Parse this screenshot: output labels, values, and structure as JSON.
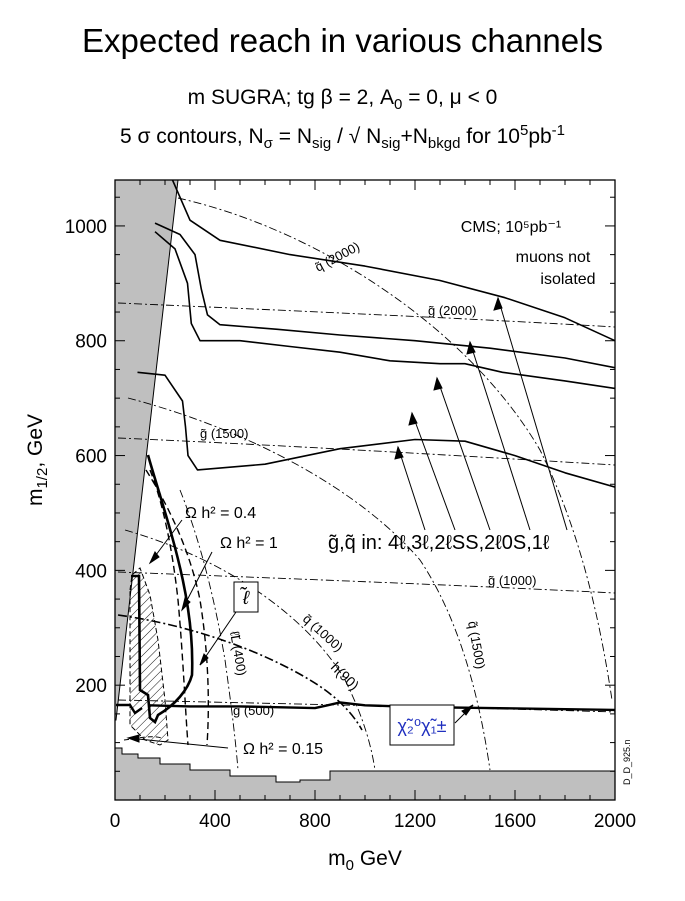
{
  "title": "Expected reach in various channels",
  "subtitle_line1": {
    "pre": "m SUGRA; tg β = 2, A",
    "sub": "0",
    "post": " = 0, μ < 0"
  },
  "subtitle_line2": {
    "pre": "5 σ contours, N",
    "sub1": "σ",
    "mid1": " = N",
    "sub2": "sig",
    "mid2": " / √ N",
    "sub3": "sig",
    "mid3": "+N",
    "sub4": "bkgd",
    "mid4": "  for 10",
    "sup": "5",
    "post": "pb",
    "sup2": "-1"
  },
  "chart_data": {
    "type": "line",
    "xlabel": "m₀ GeV",
    "ylabel": "m1/2, GeV",
    "xlim": [
      0,
      2000
    ],
    "ylim": [
      0,
      1080
    ],
    "x_ticks": [
      "0",
      "400",
      "800",
      "1200",
      "1600",
      "2000"
    ],
    "y_ticks": [
      "200",
      "400",
      "600",
      "800",
      "1000"
    ],
    "grid": false,
    "annotations": {
      "cms": "CMS;  10⁵pb⁻¹",
      "muons1": "muons not",
      "muons2": "isolated",
      "gq_channels": "g̃,q̃  in: 4ℓ,3ℓ,2ℓSS,2ℓ0S,1ℓ",
      "omega_04": "Ω h² = 0.4",
      "omega_1": "Ω h² = 1",
      "omega_015": "Ω h² = 0.15",
      "slepton_box": "ℓ̃",
      "chi_box": "χ̃₂⁰χ̃₁±",
      "q2000": "q̃ (2000)",
      "g2000": "g̃ (2000)",
      "g1500": "g̃ (1500)",
      "g1000": "g̃ (1000)",
      "q1000": "q̃ (1000)",
      "q1500": "q̃ (1500)",
      "g500": "g̃ (500)",
      "h90": "h(90)",
      "lL400": "ℓ̃L (400)",
      "side_id": "D_D_925.n"
    },
    "series": [
      {
        "style": "solid",
        "points": [
          [
            230,
            1080
          ],
          [
            300,
            1010
          ],
          [
            420,
            975
          ],
          [
            700,
            950
          ],
          [
            1000,
            930
          ],
          [
            1300,
            905
          ],
          [
            1560,
            875
          ],
          [
            1800,
            840
          ],
          [
            2000,
            800
          ]
        ]
      },
      {
        "style": "solid",
        "points": [
          [
            160,
            1005
          ],
          [
            260,
            985
          ],
          [
            320,
            950
          ],
          [
            345,
            890
          ],
          [
            370,
            845
          ],
          [
            420,
            828
          ],
          [
            650,
            820
          ],
          [
            900,
            810
          ],
          [
            1200,
            800
          ],
          [
            1500,
            787
          ],
          [
            1800,
            770
          ],
          [
            2000,
            753
          ]
        ]
      },
      {
        "style": "solid",
        "points": [
          [
            160,
            990
          ],
          [
            240,
            960
          ],
          [
            290,
            900
          ],
          [
            305,
            830
          ],
          [
            340,
            800
          ],
          [
            500,
            800
          ],
          [
            700,
            790
          ],
          [
            900,
            780
          ],
          [
            1100,
            765
          ],
          [
            1300,
            760
          ],
          [
            1400,
            760
          ],
          [
            1550,
            745
          ],
          [
            1800,
            730
          ],
          [
            2000,
            717
          ]
        ]
      },
      {
        "style": "solid",
        "points": [
          [
            90,
            745
          ],
          [
            200,
            740
          ],
          [
            270,
            695
          ],
          [
            282,
            650
          ],
          [
            292,
            600
          ],
          [
            330,
            575
          ],
          [
            600,
            585
          ],
          [
            900,
            612
          ],
          [
            1200,
            628
          ],
          [
            1400,
            625
          ],
          [
            1600,
            600
          ],
          [
            1800,
            570
          ],
          [
            2000,
            545
          ]
        ]
      },
      {
        "style": "solid",
        "points": [
          [
            135,
            165
          ],
          [
            300,
            163
          ],
          [
            500,
            163
          ],
          [
            800,
            160
          ],
          [
            850,
            165
          ],
          [
            900,
            170
          ],
          [
            1000,
            165
          ],
          [
            1200,
            162
          ],
          [
            1500,
            160
          ],
          [
            2000,
            157
          ]
        ]
      }
    ]
  }
}
